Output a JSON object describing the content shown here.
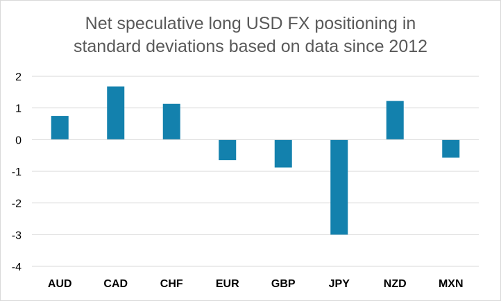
{
  "chart_data": {
    "type": "bar",
    "title_lines": [
      "Net speculative long USD FX positioning in",
      "standard deviations based on data since 2012"
    ],
    "categories": [
      "AUD",
      "CAD",
      "CHF",
      "EUR",
      "GBP",
      "JPY",
      "NZD",
      "MXN"
    ],
    "values": [
      0.75,
      1.68,
      1.13,
      -0.65,
      -0.88,
      -3.0,
      1.22,
      -0.57
    ],
    "xlabel": "",
    "ylabel": "",
    "ylim": [
      -4,
      2
    ],
    "yticks": [
      "2",
      "1",
      "0",
      "-1",
      "-2",
      "-3",
      "-4"
    ],
    "ytick_values": [
      2,
      1,
      0,
      -1,
      -2,
      -3,
      -4
    ],
    "grid": true,
    "legend": "none",
    "colors": {
      "bar": "#1381ad",
      "grid": "#d9d9d9",
      "title": "#595959",
      "axis": "#d9d9d9"
    }
  }
}
